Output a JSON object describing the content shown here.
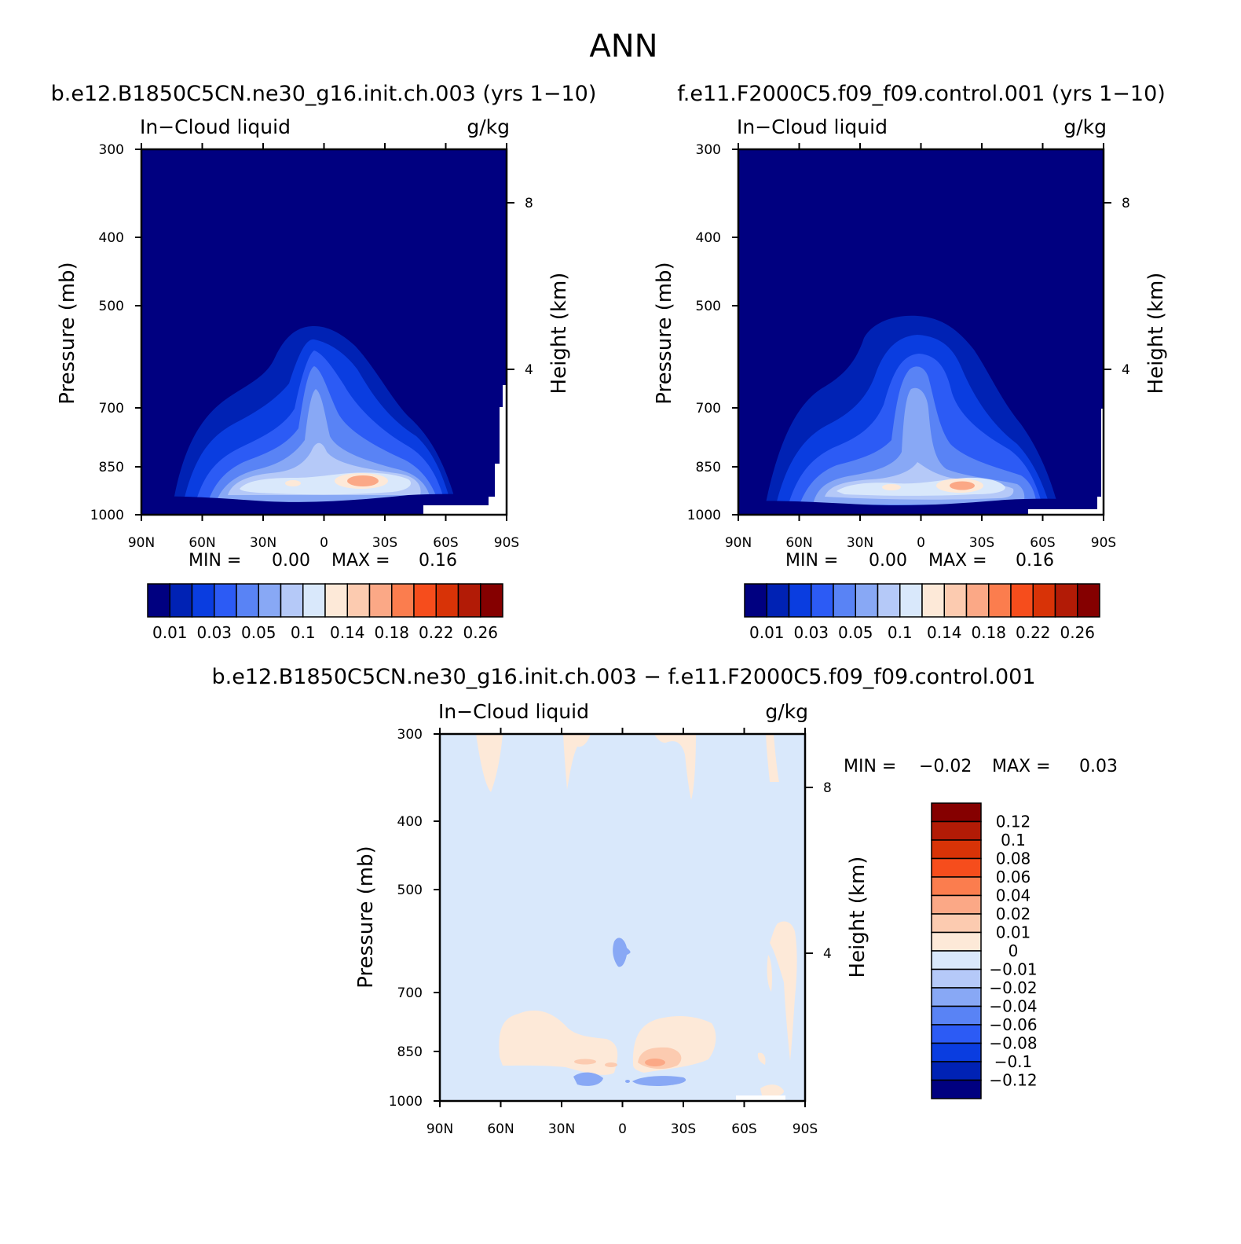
{
  "figure": {
    "title": "ANN",
    "panel_left_title": "b.e12.B1850C5CN.ne30_g16.init.ch.003 (yrs 1−10)",
    "panel_right_title": "f.e11.F2000C5.f09_f09.control.001 (yrs 1−10)",
    "diff_title": "b.e12.B1850C5CN.ne30_g16.init.ch.003 − f.e11.F2000C5.f09_f09.control.001"
  },
  "chart_data": [
    {
      "type": "heatmap",
      "id": "case",
      "title": "b.e12.B1850C5CN.ne30_g16.init.ch.003 (yrs 1−10)",
      "variable": "In−Cloud liquid",
      "units": "g/kg",
      "ylabel": "Pressure (mb)",
      "ylabel_right": "Height (km)",
      "x_ticks": [
        "90N",
        "60N",
        "30N",
        "0",
        "30S",
        "60S",
        "90S"
      ],
      "y_ticks": [
        "300",
        "400",
        "500",
        "700",
        "850",
        "1000"
      ],
      "y_right_ticks": [
        "8",
        "4"
      ],
      "ylim": [
        1000,
        300
      ],
      "min_label": "MIN =",
      "min_value": "0.00",
      "max_label": "MAX =",
      "max_value": "0.16",
      "colorbar": {
        "colors": [
          "#000080",
          "#0022b4",
          "#0a3de0",
          "#2c5bf5",
          "#5983f5",
          "#88a8f5",
          "#b5c9f8",
          "#d9e8fb",
          "#fde9d8",
          "#fccbb0",
          "#fba886",
          "#fb7d4e",
          "#f64d1c",
          "#d83307",
          "#b21b06",
          "#850000"
        ],
        "labels": [
          "0.01",
          "0.03",
          "0.05",
          "0.1",
          "0.14",
          "0.18",
          "0.22",
          "0.26"
        ]
      }
    },
    {
      "type": "heatmap",
      "id": "control",
      "title": "f.e11.F2000C5.f09_f09.control.001 (yrs 1−10)",
      "variable": "In−Cloud liquid",
      "units": "g/kg",
      "ylabel": "Pressure (mb)",
      "ylabel_right": "Height (km)",
      "x_ticks": [
        "90N",
        "60N",
        "30N",
        "0",
        "30S",
        "60S",
        "90S"
      ],
      "y_ticks": [
        "300",
        "400",
        "500",
        "700",
        "850",
        "1000"
      ],
      "y_right_ticks": [
        "8",
        "4"
      ],
      "ylim": [
        1000,
        300
      ],
      "min_label": "MIN =",
      "min_value": "0.00",
      "max_label": "MAX =",
      "max_value": "0.16",
      "colorbar": {
        "colors": [
          "#000080",
          "#0022b4",
          "#0a3de0",
          "#2c5bf5",
          "#5983f5",
          "#88a8f5",
          "#b5c9f8",
          "#d9e8fb",
          "#fde9d8",
          "#fccbb0",
          "#fba886",
          "#fb7d4e",
          "#f64d1c",
          "#d83307",
          "#b21b06",
          "#850000"
        ],
        "labels": [
          "0.01",
          "0.03",
          "0.05",
          "0.1",
          "0.14",
          "0.18",
          "0.22",
          "0.26"
        ]
      }
    },
    {
      "type": "heatmap",
      "id": "difference",
      "title": "b.e12.B1850C5CN.ne30_g16.init.ch.003 − f.e11.F2000C5.f09_f09.control.001",
      "variable": "In−Cloud liquid",
      "units": "g/kg",
      "ylabel": "Pressure (mb)",
      "ylabel_right": "Height (km)",
      "x_ticks": [
        "90N",
        "60N",
        "30N",
        "0",
        "30S",
        "60S",
        "90S"
      ],
      "y_ticks": [
        "300",
        "400",
        "500",
        "700",
        "850",
        "1000"
      ],
      "y_right_ticks": [
        "8",
        "4"
      ],
      "ylim": [
        1000,
        300
      ],
      "min_label": "MIN =",
      "min_value": "−0.02",
      "max_label": "MAX =",
      "max_value": "0.03",
      "colorbar": {
        "colors": [
          "#850000",
          "#b21b06",
          "#d83307",
          "#f64d1c",
          "#fb7d4e",
          "#fba886",
          "#fccbb0",
          "#fde9d8",
          "#d9e8fb",
          "#b5c9f8",
          "#88a8f5",
          "#5983f5",
          "#2c5bf5",
          "#0a3de0",
          "#0022b4",
          "#000080"
        ],
        "labels": [
          "0.12",
          "0.1",
          "0.08",
          "0.06",
          "0.04",
          "0.02",
          "0.01",
          "0",
          "−0.01",
          "−0.02",
          "−0.04",
          "−0.06",
          "−0.08",
          "−0.1",
          "−0.12"
        ]
      }
    }
  ]
}
